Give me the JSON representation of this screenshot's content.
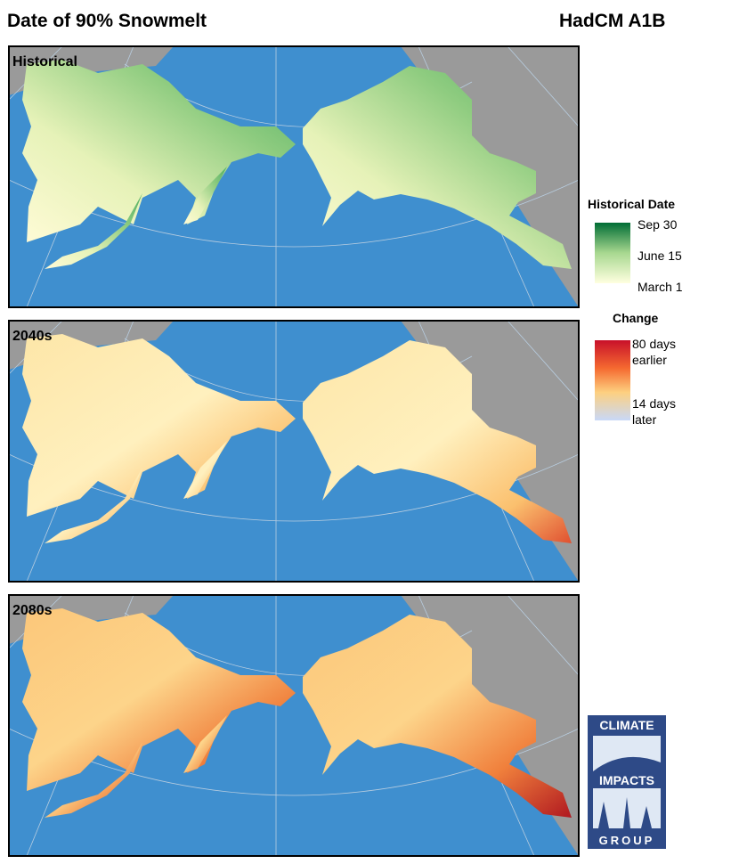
{
  "header": {
    "title": "Date of 90%  Snowmelt",
    "model": "HadCM A1B"
  },
  "panels": [
    "Historical",
    "2040s",
    "2080s"
  ],
  "legends": {
    "historical": {
      "title": "Historical Date",
      "labels": [
        "Sep 30",
        "June 15",
        "March 1"
      ]
    },
    "change": {
      "title": "Change",
      "labels": [
        "80 days earlier",
        "14 days later"
      ]
    }
  },
  "logo": [
    "CLIMATE",
    "IMPACTS",
    "GROUP"
  ]
}
